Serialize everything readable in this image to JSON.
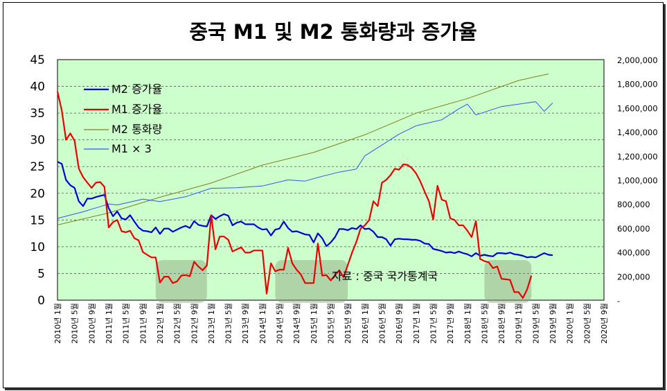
{
  "chart_data": {
    "type": "line",
    "title": "중국 M1 및 M2 통화량과 증가율",
    "source_note": "자료 : 중국 국가통계국",
    "left_axis": {
      "ylim": [
        0,
        45
      ],
      "ticks": [
        "0",
        "5",
        "10",
        "15",
        "20",
        "25",
        "30",
        "35",
        "40",
        "45"
      ]
    },
    "right_axis": {
      "ylim": [
        0,
        2000000
      ],
      "ticks": [
        "-",
        "200,000",
        "400,000",
        "600,000",
        "800,000",
        "1,000,000",
        "1,200,000",
        "1,400,000",
        "1,600,000",
        "1,800,000",
        "2,000,000"
      ]
    },
    "x_ticks": [
      "2010년 1월",
      "2010년 5월",
      "2010년 9월",
      "2011년 1월",
      "2011년 5월",
      "2011년 9월",
      "2012년 1월",
      "2012년 5월",
      "2012년 9월",
      "2013년 1월",
      "2013년 5월",
      "2013년 9월",
      "2014년 1월",
      "2014년 5월",
      "2014년 9월",
      "2015년 1월",
      "2015년 5월",
      "2015년 9월",
      "2016년 1월",
      "2016년 5월",
      "2016년 9월",
      "2017년 1월",
      "2017년 5월",
      "2017년 9월",
      "2018년 1월",
      "2018년 5월",
      "2018년 9월",
      "2019년 1월",
      "2019년 5월",
      "2019년 9월",
      "2020년 1월",
      "2020년 5월",
      "2020년 9월"
    ],
    "month_span": 128,
    "series": [
      {
        "name": "M2 증가율",
        "axis": "left",
        "color": "#0000dd",
        "width": 2.2,
        "points": [
          [
            0,
            25.9
          ],
          [
            1,
            25.5
          ],
          [
            2,
            22.5
          ],
          [
            3,
            21.5
          ],
          [
            4,
            21
          ],
          [
            5,
            18.5
          ],
          [
            6,
            17.6
          ],
          [
            7,
            19
          ],
          [
            8,
            19
          ],
          [
            9,
            19.3
          ],
          [
            10,
            19.5
          ],
          [
            11,
            19.7
          ],
          [
            12,
            17.2
          ],
          [
            13,
            15.7
          ],
          [
            14,
            16.6
          ],
          [
            15,
            15.3
          ],
          [
            16,
            15.1
          ],
          [
            17,
            15.9
          ],
          [
            18,
            14.7
          ],
          [
            19,
            13.6
          ],
          [
            20,
            13
          ],
          [
            21,
            12.9
          ],
          [
            22,
            12.7
          ],
          [
            23,
            13.6
          ],
          [
            24,
            12.4
          ],
          [
            25,
            13.4
          ],
          [
            26,
            13.4
          ],
          [
            27,
            12.8
          ],
          [
            28,
            13.2
          ],
          [
            29,
            13.6
          ],
          [
            30,
            13.9
          ],
          [
            31,
            13.5
          ],
          [
            32,
            14.8
          ],
          [
            33,
            14.1
          ],
          [
            34,
            13.9
          ],
          [
            35,
            13.8
          ],
          [
            36,
            15.9
          ],
          [
            37,
            15.2
          ],
          [
            38,
            15.7
          ],
          [
            39,
            16.1
          ],
          [
            40,
            15.8
          ],
          [
            41,
            14
          ],
          [
            42,
            14.5
          ],
          [
            43,
            14.7
          ],
          [
            44,
            14.2
          ],
          [
            45,
            14.2
          ],
          [
            46,
            14.2
          ],
          [
            47,
            13.6
          ],
          [
            48,
            13.2
          ],
          [
            49,
            13.3
          ],
          [
            50,
            12.1
          ],
          [
            51,
            13.2
          ],
          [
            52,
            13.4
          ],
          [
            53,
            14.7
          ],
          [
            54,
            13.5
          ],
          [
            55,
            12.8
          ],
          [
            56,
            12.9
          ],
          [
            57,
            12.6
          ],
          [
            58,
            12.3
          ],
          [
            59,
            12.2
          ],
          [
            60,
            10.8
          ],
          [
            61,
            12.5
          ],
          [
            62,
            11.6
          ],
          [
            63,
            10.1
          ],
          [
            64,
            10.8
          ],
          [
            65,
            11.8
          ],
          [
            66,
            13.3
          ],
          [
            67,
            13.3
          ],
          [
            68,
            13.1
          ],
          [
            69,
            13.5
          ],
          [
            70,
            13.3
          ],
          [
            71,
            14
          ],
          [
            72,
            13.3
          ],
          [
            73,
            13.4
          ],
          [
            74,
            12.8
          ],
          [
            75,
            11.8
          ],
          [
            76,
            11.8
          ],
          [
            77,
            11.4
          ],
          [
            78,
            10.2
          ],
          [
            79,
            11.4
          ],
          [
            80,
            11.5
          ],
          [
            81,
            11.4
          ],
          [
            82,
            11.4
          ],
          [
            83,
            11.3
          ],
          [
            84,
            11.3
          ],
          [
            85,
            11.1
          ],
          [
            86,
            10.6
          ],
          [
            87,
            10.5
          ],
          [
            88,
            9.6
          ],
          [
            89,
            9.4
          ],
          [
            90,
            9.2
          ],
          [
            91,
            8.9
          ],
          [
            92,
            9
          ],
          [
            93,
            8.8
          ],
          [
            94,
            9.1
          ],
          [
            95,
            8.8
          ],
          [
            96,
            8.6
          ],
          [
            97,
            8.2
          ],
          [
            98,
            8.8
          ],
          [
            99,
            8.3
          ],
          [
            100,
            8.5
          ],
          [
            101,
            8.3
          ],
          [
            102,
            8.2
          ],
          [
            103,
            8.8
          ],
          [
            104,
            8.8
          ],
          [
            105,
            8.7
          ],
          [
            106,
            8.9
          ],
          [
            107,
            8.6
          ],
          [
            108,
            8.5
          ],
          [
            109,
            8.3
          ],
          [
            110,
            8
          ],
          [
            111,
            8.1
          ],
          [
            112,
            8
          ],
          [
            113,
            8.4
          ],
          [
            114,
            8.8
          ],
          [
            115,
            8.5
          ],
          [
            116,
            8.4
          ]
        ]
      },
      {
        "name": "M1 증가율",
        "axis": "left",
        "color": "#ee0000",
        "width": 2.2,
        "points": [
          [
            0,
            39
          ],
          [
            1,
            35.5
          ],
          [
            2,
            30
          ],
          [
            3,
            31.2
          ],
          [
            4,
            29.8
          ],
          [
            5,
            24.6
          ],
          [
            6,
            23
          ],
          [
            7,
            22
          ],
          [
            8,
            21
          ],
          [
            9,
            22
          ],
          [
            10,
            22.1
          ],
          [
            11,
            21.2
          ],
          [
            12,
            13.6
          ],
          [
            13,
            14.6
          ],
          [
            14,
            15
          ],
          [
            15,
            12.9
          ],
          [
            16,
            12.7
          ],
          [
            17,
            13
          ],
          [
            18,
            11.6
          ],
          [
            19,
            11.2
          ],
          [
            20,
            9
          ],
          [
            21,
            8.5
          ],
          [
            22,
            8
          ],
          [
            23,
            8
          ],
          [
            24,
            3.3
          ],
          [
            25,
            4.4
          ],
          [
            26,
            4.4
          ],
          [
            27,
            3.2
          ],
          [
            28,
            3.5
          ],
          [
            29,
            4.6
          ],
          [
            30,
            4.7
          ],
          [
            31,
            4.5
          ],
          [
            32,
            7.2
          ],
          [
            33,
            6.3
          ],
          [
            34,
            5.6
          ],
          [
            35,
            6.5
          ],
          [
            36,
            15.9
          ],
          [
            37,
            9.5
          ],
          [
            38,
            11.9
          ],
          [
            39,
            11.9
          ],
          [
            40,
            11.3
          ],
          [
            41,
            9.1
          ],
          [
            42,
            9.5
          ],
          [
            43,
            9.9
          ],
          [
            44,
            8.9
          ],
          [
            45,
            8.9
          ],
          [
            46,
            9.3
          ],
          [
            47,
            9.3
          ],
          [
            48,
            9.3
          ],
          [
            49,
            1.2
          ],
          [
            50,
            6.9
          ],
          [
            51,
            5.4
          ],
          [
            52,
            5.7
          ],
          [
            53,
            5.7
          ],
          [
            54,
            9.8
          ],
          [
            55,
            6.9
          ],
          [
            56,
            5.7
          ],
          [
            57,
            4.8
          ],
          [
            58,
            3.2
          ],
          [
            59,
            3.2
          ],
          [
            60,
            3.2
          ],
          [
            61,
            10.6
          ],
          [
            62,
            4.6
          ],
          [
            63,
            4.7
          ],
          [
            64,
            3.7
          ],
          [
            65,
            4.7
          ],
          [
            66,
            5.6
          ],
          [
            67,
            4.3
          ],
          [
            68,
            6.6
          ],
          [
            69,
            8.9
          ],
          [
            70,
            10.9
          ],
          [
            71,
            13.4
          ],
          [
            72,
            14
          ],
          [
            73,
            15
          ],
          [
            74,
            18.5
          ],
          [
            75,
            17.6
          ],
          [
            76,
            22
          ],
          [
            77,
            22.5
          ],
          [
            78,
            23.4
          ],
          [
            79,
            24.6
          ],
          [
            80,
            24.4
          ],
          [
            81,
            25.4
          ],
          [
            82,
            25.3
          ],
          [
            83,
            24.7
          ],
          [
            84,
            23.7
          ],
          [
            85,
            22.2
          ],
          [
            86,
            20.3
          ],
          [
            87,
            18.5
          ],
          [
            88,
            15.1
          ],
          [
            89,
            21.4
          ],
          [
            90,
            18.8
          ],
          [
            91,
            18.5
          ],
          [
            92,
            15.3
          ],
          [
            93,
            15
          ],
          [
            94,
            14
          ],
          [
            95,
            14
          ],
          [
            96,
            13
          ],
          [
            97,
            11.8
          ],
          [
            98,
            14.8
          ],
          [
            99,
            7.7
          ],
          [
            100,
            7.3
          ],
          [
            101,
            7.1
          ],
          [
            102,
            6
          ],
          [
            103,
            6.3
          ],
          [
            104,
            4
          ],
          [
            105,
            3.9
          ],
          [
            106,
            3.8
          ],
          [
            107,
            1.5
          ],
          [
            108,
            1.5
          ],
          [
            109,
            0.4
          ],
          [
            110,
            2
          ],
          [
            111,
            4.6
          ]
        ]
      },
      {
        "name": "M2 통화량",
        "axis": "right",
        "color": "#7f7f1a",
        "width": 1,
        "points": [
          [
            0,
            625609
          ],
          [
            12,
            725774
          ],
          [
            24,
            855898
          ],
          [
            36,
            974149
          ],
          [
            48,
            1123521
          ],
          [
            60,
            1228375
          ],
          [
            72,
            1375240
          ],
          [
            84,
            1555100
          ],
          [
            96,
            1675951
          ],
          [
            108,
            1826800
          ],
          [
            115,
            1881000
          ]
        ]
      },
      {
        "name": "M1 × 3",
        "axis": "right",
        "color": "#3355ee",
        "width": 1,
        "points": [
          [
            0,
            680000
          ],
          [
            6,
            735000
          ],
          [
            12,
            800000
          ],
          [
            14,
            792000
          ],
          [
            20,
            840000
          ],
          [
            24,
            820000
          ],
          [
            30,
            860000
          ],
          [
            36,
            930000
          ],
          [
            42,
            935000
          ],
          [
            48,
            950000
          ],
          [
            54,
            1000000
          ],
          [
            58,
            990000
          ],
          [
            62,
            1030000
          ],
          [
            66,
            1065000
          ],
          [
            70,
            1090000
          ],
          [
            72,
            1200000
          ],
          [
            76,
            1290000
          ],
          [
            80,
            1380000
          ],
          [
            84,
            1450000
          ],
          [
            90,
            1500000
          ],
          [
            94,
            1590000
          ],
          [
            96,
            1630000
          ],
          [
            98,
            1540000
          ],
          [
            104,
            1610000
          ],
          [
            108,
            1630000
          ],
          [
            112,
            1650000
          ],
          [
            114,
            1570000
          ],
          [
            116,
            1640000
          ]
        ]
      }
    ],
    "shaded_periods": [
      {
        "from": 23,
        "to": 35
      },
      {
        "from": 51,
        "to": 68
      },
      {
        "from": 100,
        "to": 111
      }
    ]
  }
}
